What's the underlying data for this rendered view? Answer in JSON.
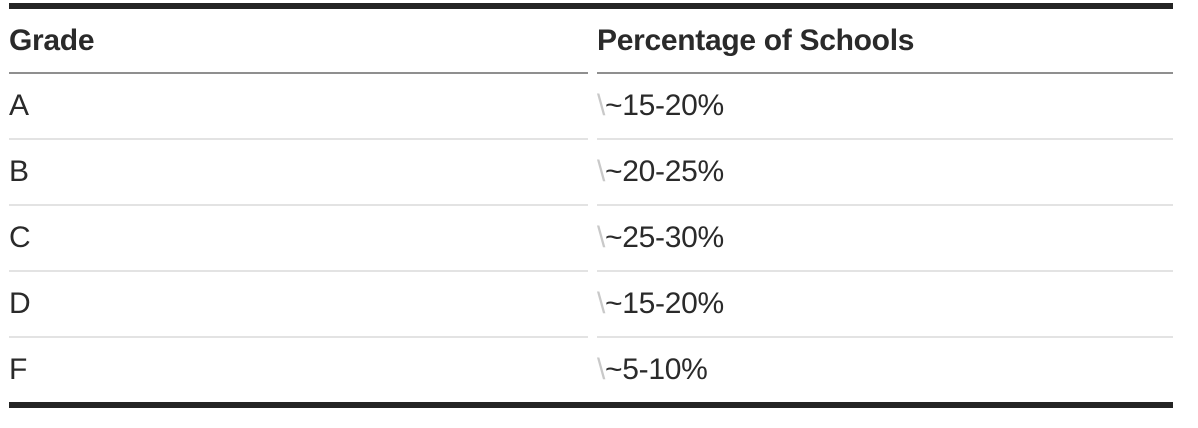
{
  "table": {
    "columns": [
      {
        "label": "Grade"
      },
      {
        "label": "Percentage of Schools"
      }
    ],
    "rows": [
      {
        "grade": "A",
        "value_prefix": "\\",
        "value": "~15-20%"
      },
      {
        "grade": "B",
        "value_prefix": "\\",
        "value": "~20-25%"
      },
      {
        "grade": "C",
        "value_prefix": "\\",
        "value": "~25-30%"
      },
      {
        "grade": "D",
        "value_prefix": "\\",
        "value": "~15-20%"
      },
      {
        "grade": "F",
        "value_prefix": "\\",
        "value": "~5-10%"
      }
    ],
    "colors": {
      "text": "#2a2a2a",
      "escape_character": "#c9c9c9",
      "outer_border": "#242424",
      "header_separator": "#8f8f8f",
      "row_separator": "#e3e3e3",
      "background": "#ffffff"
    }
  }
}
